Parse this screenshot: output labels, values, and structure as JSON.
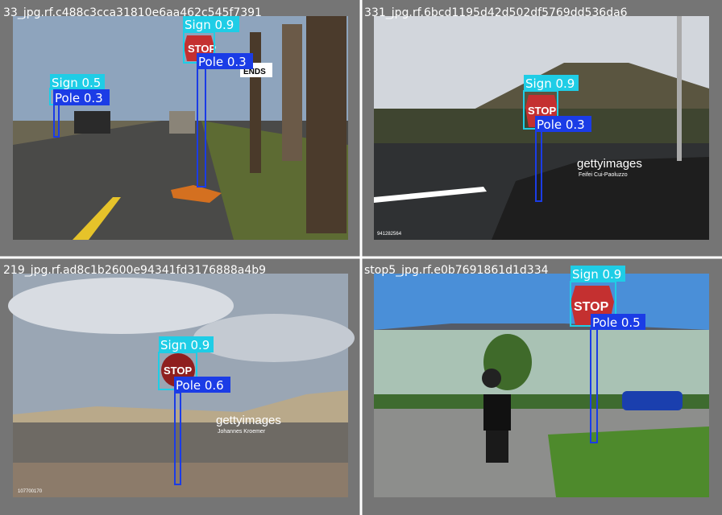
{
  "panels": [
    {
      "filename": "33_jpg.rf.c488c3cca31810e6aa462c545f7391",
      "detections": [
        "Sign 0.9",
        "Pole 0.3",
        "Sign 0.5",
        "Pole 0.3"
      ],
      "signs": [
        "STOP",
        "ENDS"
      ]
    },
    {
      "filename": "331_jpg.rf.6bcd1195d42d502df5769dd536da6",
      "detections": [
        "Sign 0.9",
        "Pole 0.3"
      ],
      "signs": [
        "STOP"
      ],
      "watermark": [
        "gettyimages",
        "Feifei Cui-Paoluzzo",
        "941282564"
      ]
    },
    {
      "filename": "219_jpg.rf.ad8c1b2600e94341fd3176888a4b9",
      "detections": [
        "Sign 0.9",
        "Pole 0.6"
      ],
      "signs": [
        "STOP"
      ],
      "watermark": [
        "gettyimages",
        "Johannes Kroemer",
        "107700170"
      ]
    },
    {
      "filename": "stop5_jpg.rf.e0b7691861d1d334",
      "detections": [
        "Sign 0.9",
        "Pole 0.5"
      ],
      "signs": [
        "STOP"
      ]
    }
  ]
}
